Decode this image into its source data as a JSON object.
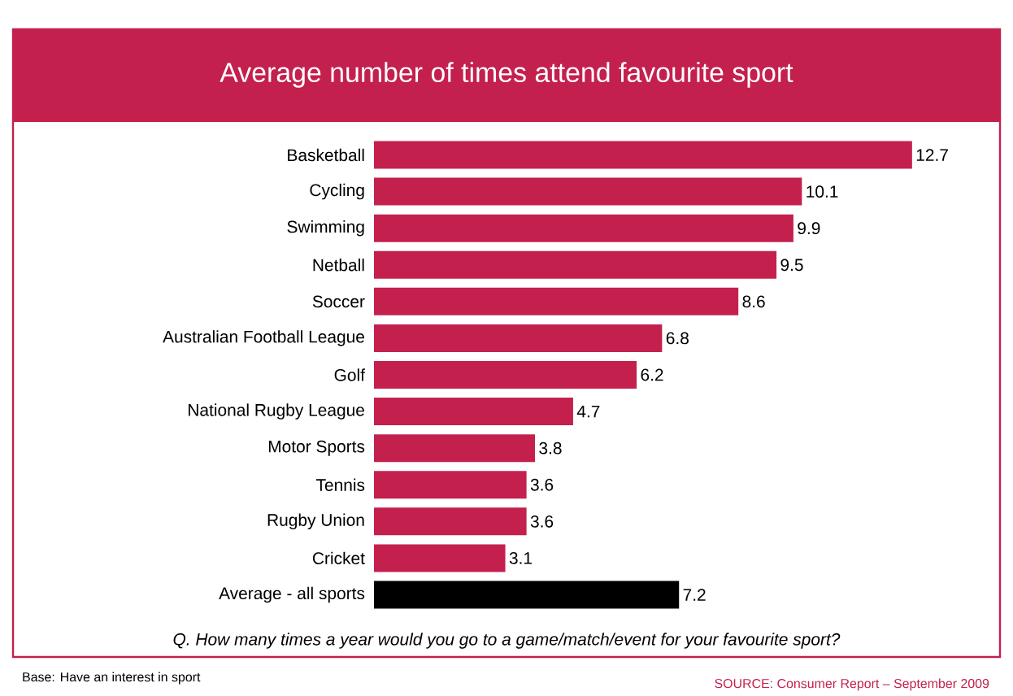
{
  "chart_data": {
    "type": "bar",
    "orientation": "horizontal",
    "title": "Average number of times attend favourite sport",
    "categories": [
      "Basketball",
      "Cycling",
      "Swimming",
      "Netball",
      "Soccer",
      "Australian Football League",
      "Golf",
      "National Rugby League",
      "Motor Sports",
      "Tennis",
      "Rugby Union",
      "Cricket",
      "Average - all sports"
    ],
    "values": [
      12.7,
      10.1,
      9.9,
      9.5,
      8.6,
      6.8,
      6.2,
      4.7,
      3.8,
      3.6,
      3.6,
      3.1,
      7.2
    ],
    "colors": [
      "#c4204e",
      "#c4204e",
      "#c4204e",
      "#c4204e",
      "#c4204e",
      "#c4204e",
      "#c4204e",
      "#c4204e",
      "#c4204e",
      "#c4204e",
      "#c4204e",
      "#c4204e",
      "#000000"
    ],
    "data_labels": true,
    "annotations": [
      "Q. How many times a year would you go to a game/match/event for your favourite sport?",
      "Base: Have an interest in sport",
      "SOURCE: Consumer Report – September 2009"
    ]
  }
}
